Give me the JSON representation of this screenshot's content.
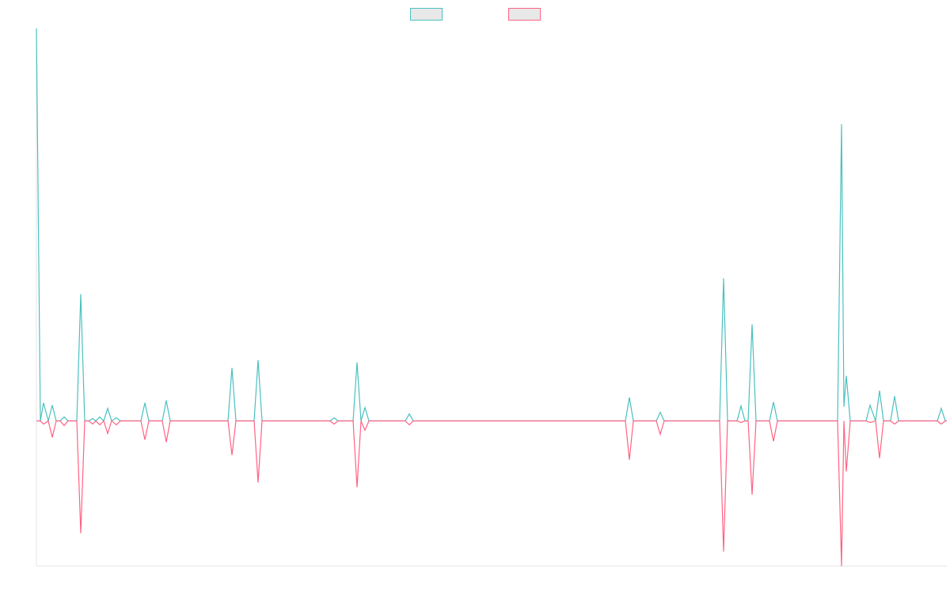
{
  "chart_data": {
    "type": "line",
    "x": [
      0,
      1,
      1.8,
      3,
      4,
      5,
      6,
      7,
      8,
      10.2,
      11.2,
      12.2,
      13.2,
      14.2,
      15,
      16,
      17,
      18,
      19,
      20.2,
      21.2,
      26.4,
      27.4,
      28.4,
      31.8,
      32.8,
      33.8,
      48.4,
      49.4,
      50.4,
      55,
      56,
      57,
      74.2,
      75.2,
      76.2,
      80,
      81,
      82,
      83,
      84,
      93.2,
      94.2,
      95.2,
      148.8,
      149.8,
      150.8,
      156.6,
      157.6,
      158.6,
      172.6,
      173.6,
      174.6,
      177,
      178,
      179,
      179.8,
      180.8,
      181.8,
      185.2,
      186.2,
      187.2,
      202.4,
      203.4,
      204,
      204.6,
      205.6,
      209.6,
      210.6,
      212,
      213,
      214,
      215.8,
      216.8,
      217.8,
      227.6,
      228.6,
      229.6,
      230
    ],
    "xlim": [
      0,
      230
    ],
    "ylim": [
      -37,
      100
    ],
    "series": [
      {
        "color": "#4bc0c0",
        "values": [
          100,
          0,
          4.6,
          0,
          4,
          0,
          0,
          1,
          0,
          0,
          32.3,
          0,
          0,
          0.6,
          0,
          1,
          0,
          3.2,
          0,
          0.8,
          0,
          0,
          4.6,
          0,
          0,
          5.2,
          0,
          0,
          13.5,
          0,
          0,
          15.5,
          0,
          0,
          0.8,
          0,
          0,
          14.9,
          0,
          3.4,
          0,
          0,
          1.8,
          0,
          0,
          6,
          0,
          0,
          2.2,
          0,
          0,
          36.3,
          0,
          0,
          3.8,
          0,
          0,
          24.6,
          0,
          0,
          4.8,
          0,
          0,
          75.6,
          3.6,
          11.5,
          0,
          0,
          4,
          0,
          7.7,
          0,
          0,
          6.3,
          0,
          0,
          3.2,
          0,
          0
        ]
      },
      {
        "color": "#ff6384",
        "values": [
          0,
          0,
          -0.8,
          0,
          -4.2,
          0,
          0,
          -1.2,
          0,
          0,
          -28.6,
          0,
          0,
          -0.8,
          0,
          -1,
          0,
          -3.2,
          0,
          -1,
          0,
          0,
          -4.8,
          0,
          0,
          -5.4,
          0,
          0,
          -8.7,
          0,
          0,
          -15.7,
          0,
          0,
          -0.8,
          0,
          0,
          -16.9,
          0,
          -2.4,
          0,
          0,
          -1,
          0,
          0,
          -9.9,
          0,
          0,
          -3.4,
          0,
          0,
          -33.3,
          0,
          0,
          -0.4,
          0,
          0,
          -18.8,
          0,
          0,
          -5.2,
          0,
          0,
          -37,
          0,
          -12.9,
          0,
          0,
          -0.4,
          0,
          -9.5,
          0,
          0,
          -0.8,
          0,
          0,
          -0.8,
          0,
          0
        ]
      }
    ],
    "legend": "top"
  }
}
